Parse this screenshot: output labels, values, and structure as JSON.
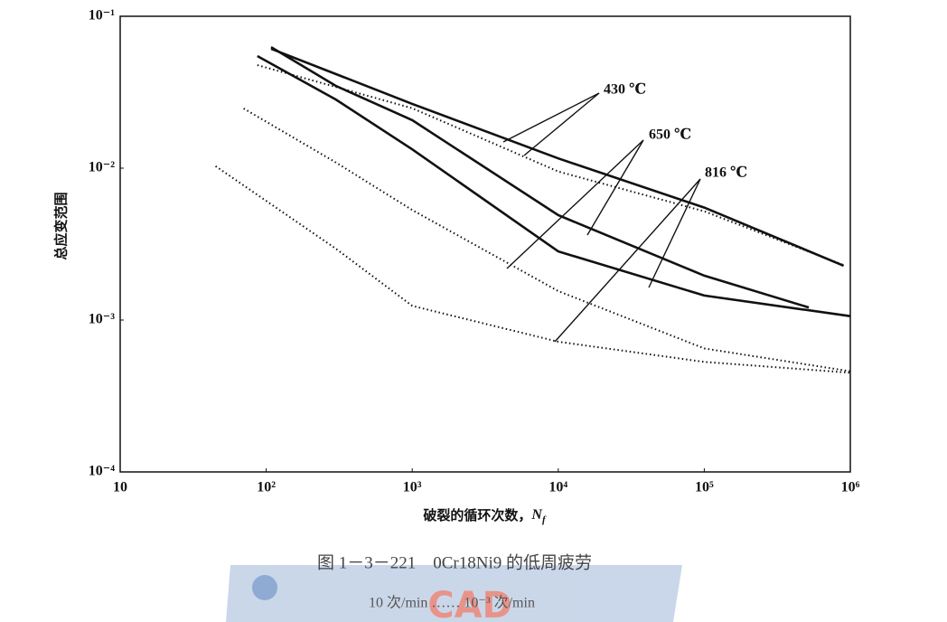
{
  "chart_data": {
    "type": "line",
    "ylabel": "总应变范围",
    "xlabel": "破裂的循环次数，",
    "xlabel_var": "N",
    "xlabel_sub": "f",
    "xscale": "log",
    "yscale": "log",
    "xlim": [
      10,
      1000000
    ],
    "ylim": [
      0.0001,
      0.1
    ],
    "xticks": [
      {
        "value": 10,
        "label": "10"
      },
      {
        "value": 100,
        "label": "10²"
      },
      {
        "value": 1000,
        "label": "10³"
      },
      {
        "value": 10000,
        "label": "10⁴"
      },
      {
        "value": 100000,
        "label": "10⁵"
      },
      {
        "value": 1000000,
        "label": "10⁶"
      }
    ],
    "yticks": [
      {
        "value": 0.0001,
        "label": "10⁻⁴"
      },
      {
        "value": 0.001,
        "label": "10⁻³"
      },
      {
        "value": 0.01,
        "label": "10⁻²"
      },
      {
        "value": 0.1,
        "label": "10⁻¹"
      }
    ],
    "series": [
      {
        "color": "#111111",
        "style": "solid",
        "x": [
          108,
          1000,
          10000,
          100000,
          900000
        ],
        "values": [
          0.0611,
          0.0265,
          0.0116,
          0.0055,
          0.00228
        ]
      },
      {
        "color": "#111111",
        "style": "dotted",
        "x": [
          87,
          1000,
          10000,
          100000,
          900000
        ],
        "values": [
          0.0477,
          0.0248,
          0.0095,
          0.0052,
          0.0023
        ]
      },
      {
        "color": "#111111",
        "style": "solid",
        "x": [
          108,
          300,
          1000,
          10000,
          100000,
          520000
        ],
        "values": [
          0.0627,
          0.0348,
          0.0207,
          0.0049,
          0.00196,
          0.00121
        ]
      },
      {
        "color": "#111111",
        "style": "solid",
        "x": [
          87,
          300,
          1000,
          10000,
          100000,
          1000000
        ],
        "values": [
          0.0547,
          0.0283,
          0.0133,
          0.00283,
          0.00145,
          0.00106
        ]
      },
      {
        "color": "#111111",
        "style": "dotted",
        "x": [
          70,
          300,
          1000,
          10000,
          100000,
          1000000
        ],
        "values": [
          0.0247,
          0.0109,
          0.0053,
          0.00155,
          0.00065,
          0.00046
        ]
      },
      {
        "color": "#111111",
        "style": "dotted",
        "x": [
          45,
          300,
          1000,
          10000,
          100000,
          1000000
        ],
        "values": [
          0.0103,
          0.00295,
          0.00124,
          0.00072,
          0.00053,
          0.00045
        ]
      }
    ],
    "annotations": [
      "430 ℃",
      "650 ℃",
      "816 ℃"
    ],
    "caption": "图 1－3－221　0Cr18Ni9 的低周疲劳",
    "caption_line2": "10 次/min …… 10⁻³ 次/min",
    "watermark": "CAD"
  }
}
